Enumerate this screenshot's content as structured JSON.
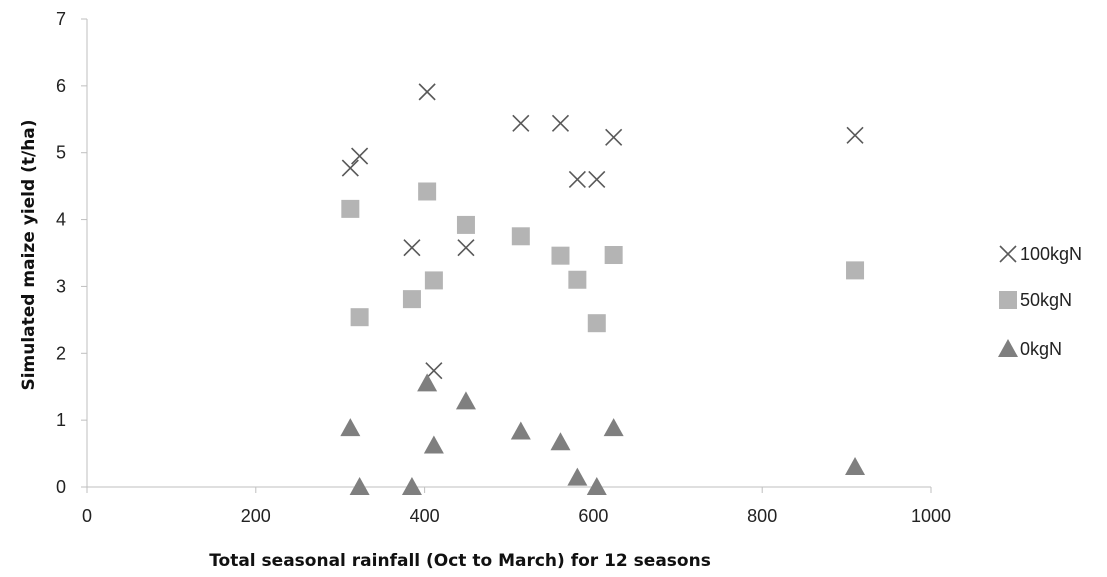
{
  "chart_data": {
    "type": "scatter",
    "title": "",
    "xlabel": "Total seasonal rainfall (Oct to March) for 12 seasons",
    "ylabel": "Simulated maize yield (t/ha)",
    "xlim": [
      0,
      1000
    ],
    "ylim": [
      0,
      7
    ],
    "x_ticks": [
      0,
      200,
      400,
      600,
      800,
      1000
    ],
    "y_ticks": [
      0,
      1,
      2,
      3,
      4,
      5,
      6,
      7
    ],
    "grid": false,
    "legend_position": "right",
    "series": [
      {
        "name": "100kgN",
        "marker": "x",
        "color": "#595959",
        "points": [
          [
            312,
            4.77
          ],
          [
            323,
            4.95
          ],
          [
            385,
            3.58
          ],
          [
            403,
            5.91
          ],
          [
            411,
            1.74
          ],
          [
            449,
            3.58
          ],
          [
            514,
            5.44
          ],
          [
            561,
            5.44
          ],
          [
            581,
            4.6
          ],
          [
            604,
            4.6
          ],
          [
            624,
            5.23
          ],
          [
            910,
            5.26
          ]
        ]
      },
      {
        "name": "50kgN",
        "marker": "square",
        "color": "#b4b4b4",
        "points": [
          [
            312,
            4.16
          ],
          [
            323,
            2.54
          ],
          [
            385,
            2.81
          ],
          [
            403,
            4.42
          ],
          [
            411,
            3.09
          ],
          [
            449,
            3.92
          ],
          [
            514,
            3.75
          ],
          [
            561,
            3.46
          ],
          [
            581,
            3.1
          ],
          [
            604,
            2.45
          ],
          [
            624,
            3.47
          ],
          [
            910,
            3.24
          ]
        ]
      },
      {
        "name": "0kgN",
        "marker": "triangle",
        "color": "#7f7f7f",
        "points": [
          [
            312,
            0.88
          ],
          [
            323,
            0.0
          ],
          [
            385,
            0.0
          ],
          [
            403,
            1.55
          ],
          [
            411,
            0.62
          ],
          [
            449,
            1.28
          ],
          [
            514,
            0.83
          ],
          [
            561,
            0.67
          ],
          [
            581,
            0.14
          ],
          [
            604,
            0.0
          ],
          [
            624,
            0.88
          ],
          [
            910,
            0.3
          ]
        ]
      }
    ]
  }
}
